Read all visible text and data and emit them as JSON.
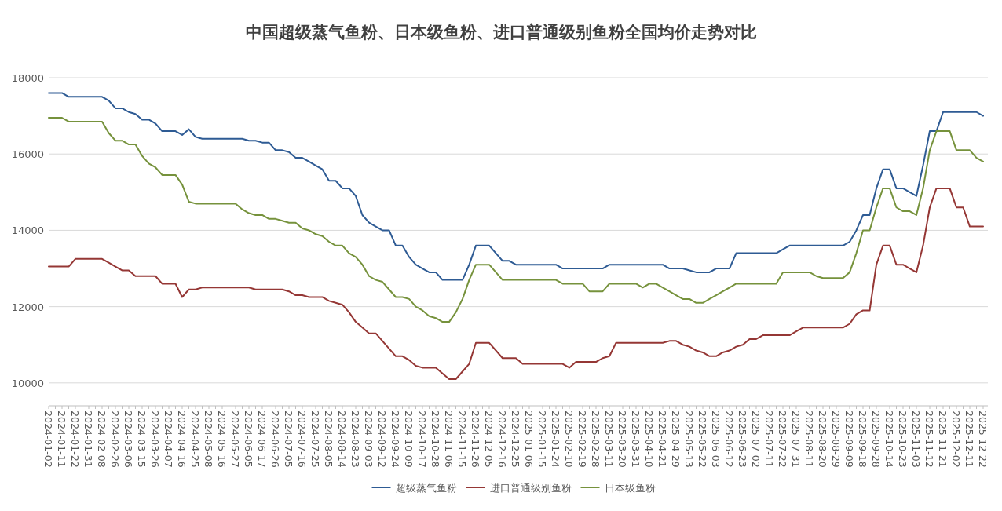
{
  "chart_data": {
    "type": "line",
    "title": "中国超级蒸气鱼粉、日本级鱼粉、进口普通级别鱼粉全国均价走势对比",
    "categories": [
      "2024-01-02",
      null,
      "2024-01-11",
      null,
      "2024-01-22",
      null,
      "2024-01-31",
      null,
      "2024-02-08",
      null,
      "2024-02-26",
      null,
      "2024-03-06",
      null,
      "2024-03-15",
      null,
      "2024-03-26",
      null,
      "2024-04-07",
      null,
      "2024-04-16",
      null,
      "2024-04-25",
      null,
      "2024-05-08",
      null,
      "2024-05-16",
      null,
      "2024-05-27",
      null,
      "2024-06-05",
      null,
      "2024-06-17",
      null,
      "2024-06-26",
      null,
      "2024-07-05",
      null,
      "2024-07-16",
      null,
      "2024-07-25",
      null,
      "2024-08-05",
      null,
      "2024-08-14",
      null,
      "2024-08-23",
      null,
      "2024-09-03",
      null,
      "2024-09-12",
      null,
      "2024-09-24",
      null,
      "2024-10-09",
      null,
      "2024-10-17",
      null,
      "2024-10-28",
      null,
      "2024-11-06",
      null,
      "2024-11-15",
      null,
      "2024-11-26",
      null,
      "2024-12-05",
      null,
      "2024-12-16",
      null,
      "2024-12-25",
      null,
      "2025-01-06",
      null,
      "2025-01-15",
      null,
      "2025-01-24",
      null,
      "2025-02-10",
      null,
      "2025-02-19",
      null,
      "2025-02-28",
      null,
      "2025-03-11",
      null,
      "2025-03-20",
      null,
      "2025-03-31",
      null,
      "2025-04-10",
      null,
      "2025-04-21",
      null,
      "2025-04-29",
      null,
      "2025-05-13",
      null,
      "2025-05-22",
      null,
      "2025-06-03",
      null,
      "2025-06-12",
      null,
      "2025-06-23",
      null,
      "2025-07-02",
      null,
      "2025-07-11",
      null,
      "2025-07-22",
      null,
      "2025-07-31",
      null,
      "2025-08-11",
      null,
      "2025-08-20",
      null,
      "2025-08-29",
      null,
      "2025-09-09",
      null,
      "2025-09-18",
      null,
      "2025-09-28",
      null,
      "2025-10-14",
      null,
      "2025-10-23",
      null,
      "2025-11-03",
      null,
      "2025-11-12",
      null,
      "2025-11-21",
      null,
      "2025-12-02",
      null,
      "2025-12-11",
      null,
      "2025-12-22"
    ],
    "series": [
      {
        "name": "超级蒸气鱼粉",
        "color": "#2e5b94",
        "values": [
          17600,
          17600,
          17600,
          17500,
          17500,
          17500,
          17500,
          17500,
          17500,
          17400,
          17200,
          17200,
          17100,
          17050,
          16900,
          16900,
          16800,
          16600,
          16600,
          16600,
          16500,
          16650,
          16450,
          16400,
          16400,
          16400,
          16400,
          16400,
          16400,
          16400,
          16350,
          16350,
          16300,
          16300,
          16100,
          16100,
          16050,
          15900,
          15900,
          15800,
          15700,
          15600,
          15300,
          15300,
          15100,
          15100,
          14900,
          14400,
          14200,
          14100,
          14000,
          14000,
          13600,
          13600,
          13300,
          13100,
          13000,
          12900,
          12900,
          12700,
          12700,
          12700,
          12700,
          13100,
          13600,
          13600,
          13600,
          13400,
          13200,
          13200,
          13100,
          13100,
          13100,
          13100,
          13100,
          13100,
          13100,
          13000,
          13000,
          13000,
          13000,
          13000,
          13000,
          13000,
          13100,
          13100,
          13100,
          13100,
          13100,
          13100,
          13100,
          13100,
          13100,
          13000,
          13000,
          13000,
          12950,
          12900,
          12900,
          12900,
          13000,
          13000,
          13000,
          13400,
          13400,
          13400,
          13400,
          13400,
          13400,
          13400,
          13500,
          13600,
          13600,
          13600,
          13600,
          13600,
          13600,
          13600,
          13600,
          13600,
          13700,
          14000,
          14400,
          14400,
          15100,
          15600,
          15600,
          15100,
          15100,
          15000,
          14900,
          15700,
          16600,
          16600,
          17100,
          17100,
          17100,
          17100,
          17100,
          17100,
          17000
        ]
      },
      {
        "name": "进口普通级别鱼粉",
        "color": "#953735",
        "values": [
          13050,
          13050,
          13050,
          13050,
          13250,
          13250,
          13250,
          13250,
          13250,
          13150,
          13050,
          12950,
          12950,
          12800,
          12800,
          12800,
          12800,
          12600,
          12600,
          12600,
          12250,
          12450,
          12450,
          12500,
          12500,
          12500,
          12500,
          12500,
          12500,
          12500,
          12500,
          12450,
          12450,
          12450,
          12450,
          12450,
          12400,
          12300,
          12300,
          12250,
          12250,
          12250,
          12150,
          12100,
          12050,
          11850,
          11600,
          11450,
          11300,
          11300,
          11100,
          10900,
          10700,
          10700,
          10600,
          10450,
          10400,
          10400,
          10400,
          10250,
          10100,
          10100,
          10300,
          10500,
          11050,
          11050,
          11050,
          10850,
          10650,
          10650,
          10650,
          10500,
          10500,
          10500,
          10500,
          10500,
          10500,
          10500,
          10400,
          10550,
          10550,
          10550,
          10550,
          10650,
          10700,
          11050,
          11050,
          11050,
          11050,
          11050,
          11050,
          11050,
          11050,
          11100,
          11100,
          11000,
          10950,
          10850,
          10800,
          10700,
          10700,
          10800,
          10850,
          10950,
          11000,
          11150,
          11150,
          11250,
          11250,
          11250,
          11250,
          11250,
          11350,
          11450,
          11450,
          11450,
          11450,
          11450,
          11450,
          11450,
          11550,
          11800,
          11900,
          11900,
          13100,
          13600,
          13600,
          13100,
          13100,
          13000,
          12900,
          13600,
          14600,
          15100,
          15100,
          15100,
          14600,
          14600,
          14100,
          14100,
          14100
        ]
      },
      {
        "name": "日本级鱼粉",
        "color": "#76923c",
        "values": [
          16950,
          16950,
          16950,
          16850,
          16850,
          16850,
          16850,
          16850,
          16850,
          16550,
          16350,
          16350,
          16250,
          16250,
          15950,
          15750,
          15650,
          15450,
          15450,
          15450,
          15200,
          14750,
          14700,
          14700,
          14700,
          14700,
          14700,
          14700,
          14700,
          14550,
          14450,
          14400,
          14400,
          14300,
          14300,
          14250,
          14200,
          14200,
          14050,
          14000,
          13900,
          13850,
          13700,
          13600,
          13600,
          13400,
          13300,
          13100,
          12800,
          12700,
          12650,
          12450,
          12250,
          12250,
          12200,
          12000,
          11900,
          11750,
          11700,
          11600,
          11600,
          11850,
          12200,
          12700,
          13100,
          13100,
          13100,
          12900,
          12700,
          12700,
          12700,
          12700,
          12700,
          12700,
          12700,
          12700,
          12700,
          12600,
          12600,
          12600,
          12600,
          12400,
          12400,
          12400,
          12600,
          12600,
          12600,
          12600,
          12600,
          12500,
          12600,
          12600,
          12500,
          12400,
          12300,
          12200,
          12200,
          12100,
          12100,
          12200,
          12300,
          12400,
          12500,
          12600,
          12600,
          12600,
          12600,
          12600,
          12600,
          12600,
          12900,
          12900,
          12900,
          12900,
          12900,
          12800,
          12750,
          12750,
          12750,
          12750,
          12900,
          13400,
          14000,
          14000,
          14600,
          15100,
          15100,
          14600,
          14500,
          14500,
          14400,
          15100,
          16100,
          16600,
          16600,
          16600,
          16100,
          16100,
          16100,
          15900,
          15800
        ]
      }
    ],
    "ylim": [
      9400,
      18000
    ],
    "yticks": [
      10000,
      12000,
      14000,
      16000,
      18000
    ],
    "grid": "y",
    "legend": "bottom"
  }
}
